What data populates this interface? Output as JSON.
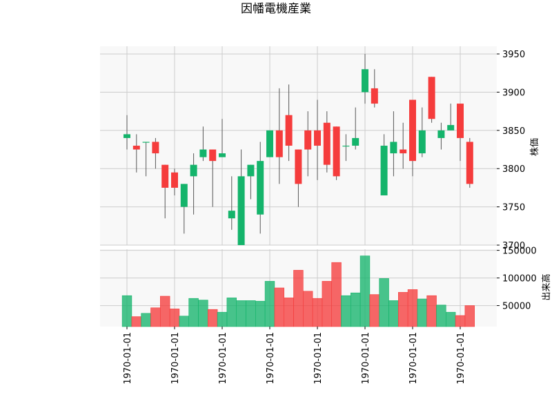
{
  "chart_data": {
    "type": "candlestick",
    "title": "因幡電機産業",
    "ylabel_price": "株価",
    "ylabel_volume": "出来高",
    "x_tick_labels": [
      "1970-01-01",
      "1970-01-01",
      "1970-01-01",
      "1970-01-01",
      "1970-01-01",
      "1970-01-01",
      "1970-01-01",
      "1970-01-01"
    ],
    "price_ylim": [
      3700,
      3960
    ],
    "price_ticks": [
      "3700",
      "3750",
      "3800",
      "3850",
      "3900",
      "3950"
    ],
    "volume_ylim": [
      12000,
      152000
    ],
    "volume_ticks": [
      "50000",
      "100000",
      "150000"
    ],
    "colors": {
      "up": "#14b46b",
      "down": "#f53c3c",
      "grid": "#cccccc",
      "panel_bg": "#f8f8f8"
    },
    "candles": [
      {
        "open": 3840,
        "high": 3870,
        "low": 3825,
        "close": 3845,
        "volume": 68000
      },
      {
        "open": 3830,
        "high": 3845,
        "low": 3795,
        "close": 3825,
        "volume": 30000
      },
      {
        "open": 3835,
        "high": 3835,
        "low": 3790,
        "close": 3835,
        "volume": 36000
      },
      {
        "open": 3835,
        "high": 3840,
        "low": 3800,
        "close": 3820,
        "volume": 46000
      },
      {
        "open": 3805,
        "high": 3805,
        "low": 3735,
        "close": 3775,
        "volume": 67000
      },
      {
        "open": 3795,
        "high": 3800,
        "low": 3765,
        "close": 3775,
        "volume": 44000
      },
      {
        "open": 3750,
        "high": 3780,
        "low": 3715,
        "close": 3780,
        "volume": 31000
      },
      {
        "open": 3790,
        "high": 3820,
        "low": 3740,
        "close": 3805,
        "volume": 63000
      },
      {
        "open": 3815,
        "high": 3855,
        "low": 3810,
        "close": 3825,
        "volume": 60000
      },
      {
        "open": 3825,
        "high": 3825,
        "low": 3750,
        "close": 3810,
        "volume": 43000
      },
      {
        "open": 3815,
        "high": 3865,
        "low": 3815,
        "close": 3820,
        "volume": 38000
      },
      {
        "open": 3735,
        "high": 3790,
        "low": 3720,
        "close": 3745,
        "volume": 64000
      },
      {
        "open": 3700,
        "high": 3825,
        "low": 3700,
        "close": 3790,
        "volume": 59000
      },
      {
        "open": 3790,
        "high": 3805,
        "low": 3760,
        "close": 3805,
        "volume": 59000
      },
      {
        "open": 3740,
        "high": 3835,
        "low": 3715,
        "close": 3810,
        "volume": 58000
      },
      {
        "open": 3815,
        "high": 3850,
        "low": 3815,
        "close": 3850,
        "volume": 94000
      },
      {
        "open": 3850,
        "high": 3905,
        "low": 3780,
        "close": 3815,
        "volume": 82000
      },
      {
        "open": 3870,
        "high": 3910,
        "low": 3810,
        "close": 3830,
        "volume": 64000
      },
      {
        "open": 3825,
        "high": 3825,
        "low": 3750,
        "close": 3780,
        "volume": 114000
      },
      {
        "open": 3850,
        "high": 3875,
        "low": 3790,
        "close": 3825,
        "volume": 76000
      },
      {
        "open": 3850,
        "high": 3890,
        "low": 3785,
        "close": 3830,
        "volume": 63000
      },
      {
        "open": 3860,
        "high": 3875,
        "low": 3795,
        "close": 3805,
        "volume": 94000
      },
      {
        "open": 3855,
        "high": 3855,
        "low": 3785,
        "close": 3790,
        "volume": 128000
      },
      {
        "open": 3830,
        "high": 3845,
        "low": 3810,
        "close": 3830,
        "volume": 68000
      },
      {
        "open": 3830,
        "high": 3880,
        "low": 3825,
        "close": 3840,
        "volume": 73000
      },
      {
        "open": 3900,
        "high": 3950,
        "low": 3885,
        "close": 3930,
        "volume": 140000
      },
      {
        "open": 3905,
        "high": 3930,
        "low": 3880,
        "close": 3885,
        "volume": 70000
      },
      {
        "open": 3765,
        "high": 3845,
        "low": 3765,
        "close": 3830,
        "volume": 99000
      },
      {
        "open": 3820,
        "high": 3875,
        "low": 3790,
        "close": 3835,
        "volume": 59000
      },
      {
        "open": 3825,
        "high": 3860,
        "low": 3800,
        "close": 3820,
        "volume": 74000
      },
      {
        "open": 3890,
        "high": 3890,
        "low": 3790,
        "close": 3810,
        "volume": 79000
      },
      {
        "open": 3820,
        "high": 3880,
        "low": 3815,
        "close": 3850,
        "volume": 62000
      },
      {
        "open": 3920,
        "high": 3920,
        "low": 3860,
        "close": 3865,
        "volume": 68000
      },
      {
        "open": 3840,
        "high": 3860,
        "low": 3825,
        "close": 3850,
        "volume": 51000
      },
      {
        "open": 3850,
        "high": 3885,
        "low": 3850,
        "close": 3857,
        "volume": 38000
      },
      {
        "open": 3885,
        "high": 3885,
        "low": 3810,
        "close": 3840,
        "volume": 32000
      },
      {
        "open": 3835,
        "high": 3840,
        "low": 3775,
        "close": 3780,
        "volume": 50000
      }
    ]
  }
}
